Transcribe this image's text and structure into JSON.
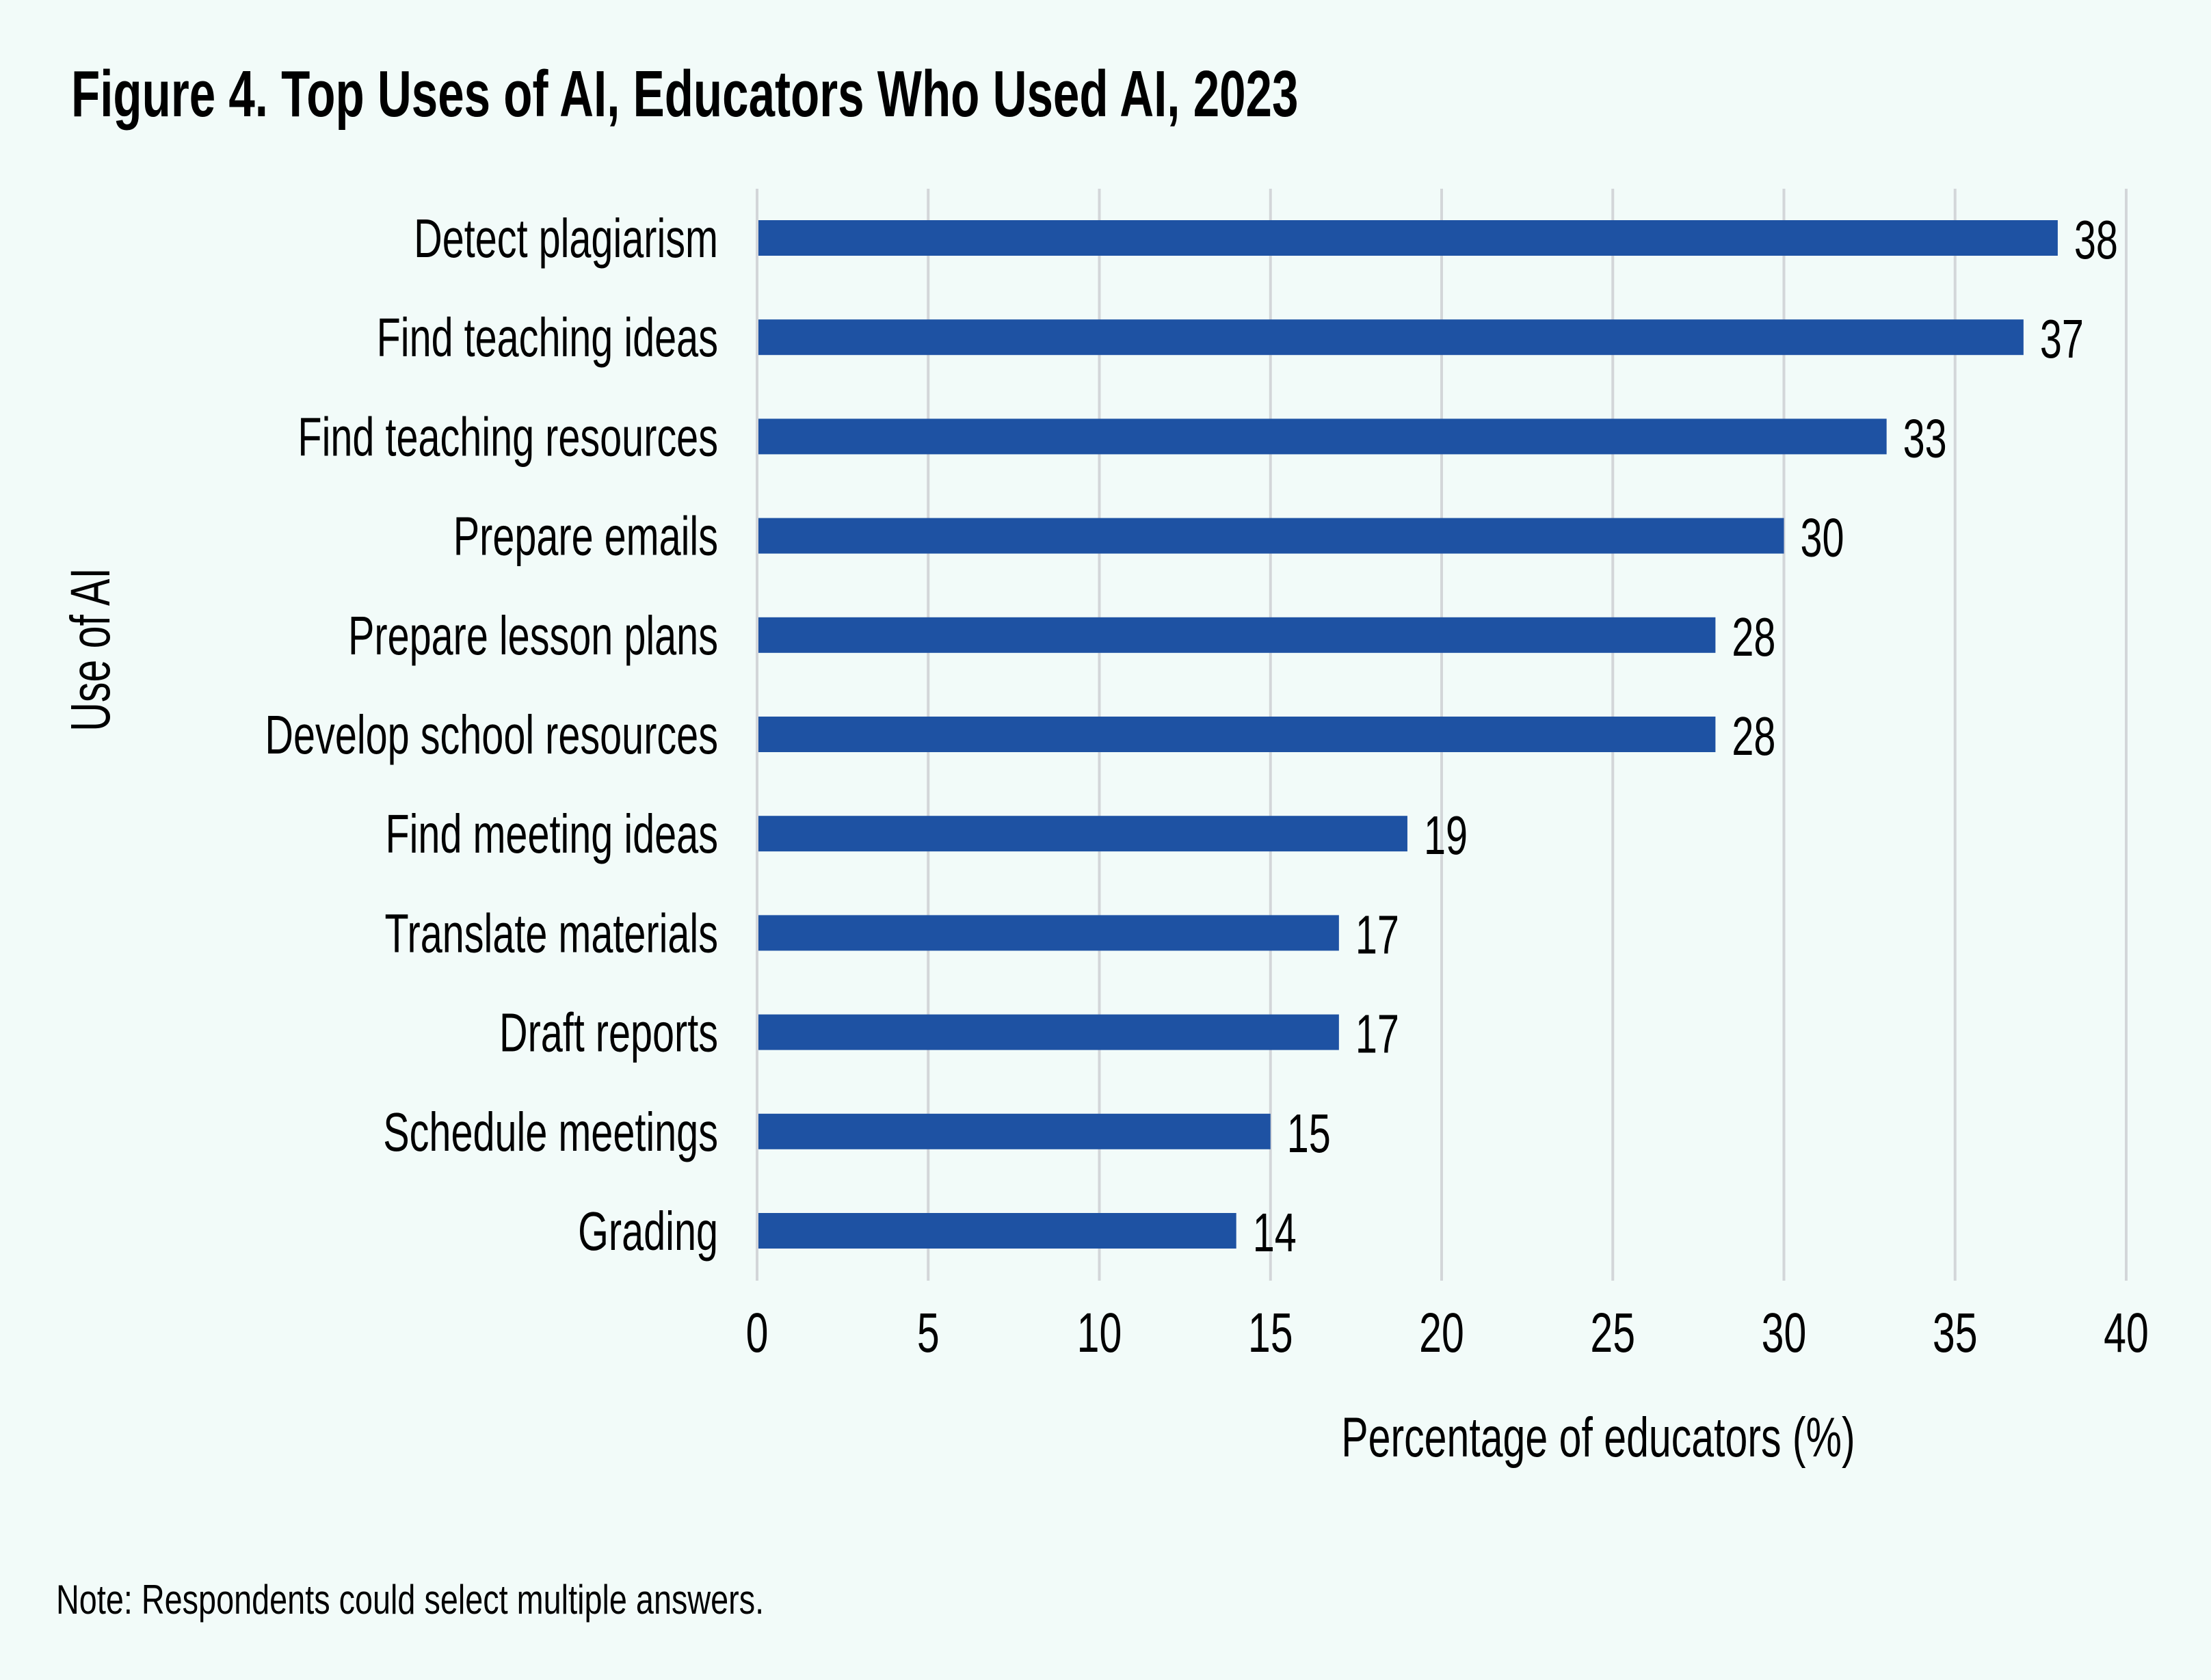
{
  "title": "Figure 4. Top Uses of AI, Educators Who Used AI, 2023",
  "note": "Note: Respondents could select multiple answers.",
  "colors": {
    "bar": "#1e52a3",
    "grid": "#d3d6d9",
    "background": "#f2fbf9",
    "text": "#000000"
  },
  "chart_data": {
    "type": "bar",
    "orientation": "horizontal",
    "title": "Figure 4. Top Uses of AI, Educators Who Used AI, 2023",
    "xlabel": "Percentage of educators (%)",
    "ylabel": "Use of AI",
    "categories": [
      "Detect plagiarism",
      "Find teaching ideas",
      "Find teaching resources",
      "Prepare emails",
      "Prepare lesson plans",
      "Develop school resources",
      "Find meeting ideas",
      "Translate materials",
      "Draft reports",
      "Schedule meetings",
      "Grading"
    ],
    "values": [
      38,
      37,
      33,
      30,
      28,
      28,
      19,
      17,
      17,
      15,
      14
    ],
    "data_labels": [
      "38",
      "37",
      "33",
      "30",
      "28",
      "28",
      "19",
      "17",
      "17",
      "15",
      "14"
    ],
    "xlim": [
      0,
      40
    ],
    "xticks": [
      0,
      5,
      10,
      15,
      20,
      25,
      30,
      35,
      40
    ],
    "xtick_labels": [
      "0",
      "5",
      "10",
      "15",
      "20",
      "25",
      "30",
      "35",
      "40"
    ],
    "grid": "vertical",
    "legend": "none"
  }
}
